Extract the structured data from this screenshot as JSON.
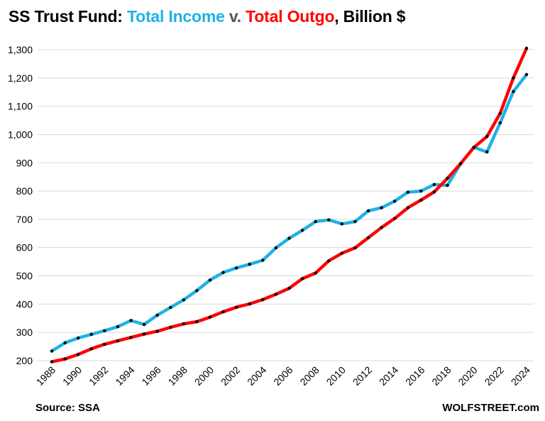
{
  "title": {
    "part1": "SS Trust Fund: ",
    "income": "Total Income",
    "mid": " v. ",
    "outgo": "Total Outgo",
    "end": ", Billion $"
  },
  "footer": {
    "source": "Source: SSA",
    "brand": "WOLFSTREET.com"
  },
  "colors": {
    "income": "#1fb2e6",
    "outgo": "#ff0000",
    "marker": "#000000",
    "grid": "#d9d9d9"
  },
  "chart_data": {
    "type": "line",
    "title": "SS Trust Fund: Total Income v. Total Outgo, Billion $",
    "xlabel": "",
    "ylabel": "",
    "ylim": [
      200,
      1300
    ],
    "yticks": [
      200,
      300,
      400,
      500,
      600,
      700,
      800,
      900,
      1000,
      1100,
      1200,
      1300
    ],
    "ytick_labels": [
      "200",
      "300",
      "400",
      "500",
      "600",
      "700",
      "800",
      "900",
      "1,000",
      "1,100",
      "1,200",
      "1,300"
    ],
    "xticks": [
      "1988",
      "1990",
      "1992",
      "1994",
      "1996",
      "1998",
      "2000",
      "2002",
      "2004",
      "2006",
      "2008",
      "2010",
      "2012",
      "2014",
      "2016",
      "2018",
      "2020",
      "2022",
      "2024"
    ],
    "grid": true,
    "x": [
      1988,
      1989,
      1990,
      1991,
      1992,
      1993,
      1994,
      1995,
      1996,
      1997,
      1998,
      1999,
      2000,
      2001,
      2002,
      2003,
      2004,
      2005,
      2006,
      2007,
      2008,
      2009,
      2010,
      2011,
      2012,
      2013,
      2014,
      2015,
      2016,
      2017,
      2018,
      2019,
      2020,
      2021,
      2022,
      2023,
      2024
    ],
    "series": [
      {
        "name": "Total Income",
        "values": [
          234,
          263,
          280,
          293,
          306,
          320,
          342,
          328,
          361,
          388,
          415,
          448,
          485,
          512,
          528,
          541,
          555,
          599,
          633,
          661,
          692,
          698,
          684,
          692,
          730,
          741,
          764,
          796,
          800,
          823,
          820,
          897,
          955,
          938,
          1041,
          1152,
          1212
        ]
      },
      {
        "name": "Total Outgo",
        "values": [
          196,
          206,
          222,
          242,
          258,
          270,
          282,
          294,
          304,
          318,
          330,
          338,
          354,
          373,
          389,
          401,
          416,
          435,
          456,
          490,
          510,
          553,
          580,
          599,
          635,
          671,
          703,
          741,
          768,
          797,
          845,
          897,
          954,
          993,
          1075,
          1200,
          1305
        ]
      }
    ]
  }
}
